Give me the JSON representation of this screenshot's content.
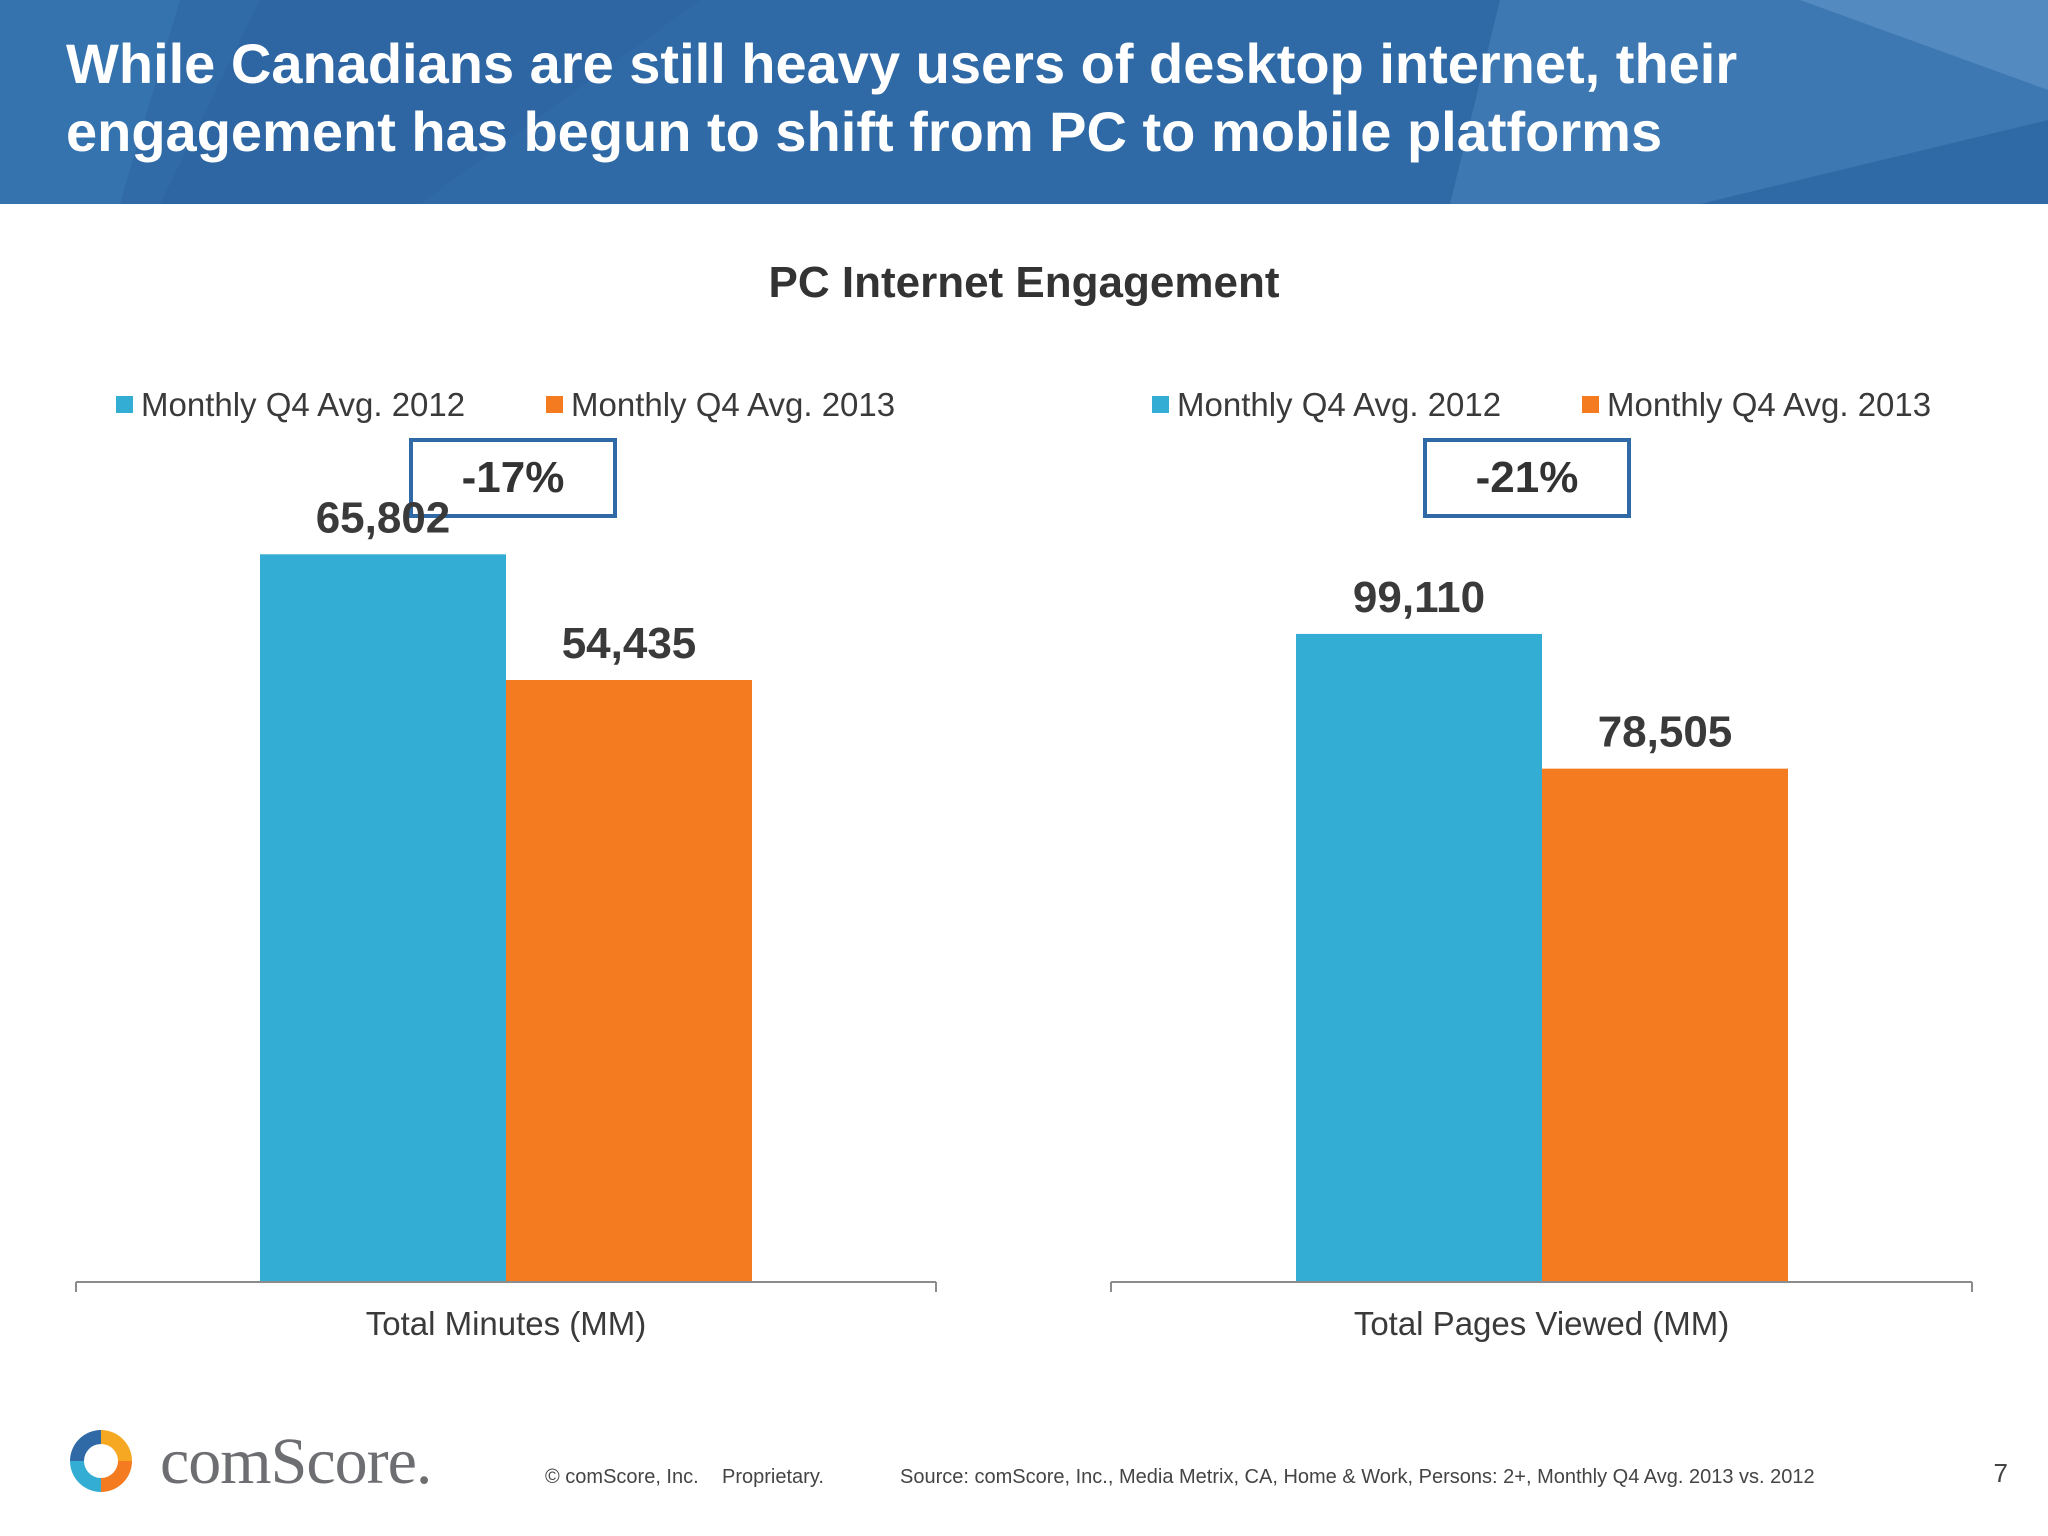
{
  "slide": {
    "title": "While Canadians are still heavy users of desktop internet, their engagement has begun to shift from PC to mobile platforms",
    "subtitle": "PC Internet Engagement",
    "page_number": "7"
  },
  "footer": {
    "logo_text": "comScore.",
    "copyright": "© comScore, Inc.",
    "proprietary": "Proprietary.",
    "source": "Source: comScore, Inc., Media Metrix, CA, Home & Work, Persons: 2+, Monthly Q4 Avg. 2013 vs. 2012"
  },
  "colors": {
    "banner": "#2f6aa6",
    "series_2012": "#33add4",
    "series_2013": "#f47b20",
    "callout_border": "#2f6aa6"
  },
  "chart_data": [
    {
      "type": "bar",
      "categories": [
        "Total Minutes (MM)"
      ],
      "series": [
        {
          "name": "Monthly Q4 Avg. 2012",
          "values": [
            65802
          ],
          "labels": [
            "65,802"
          ],
          "color": "#33add4"
        },
        {
          "name": "Monthly Q4 Avg. 2013",
          "values": [
            54435
          ],
          "labels": [
            "54,435"
          ],
          "color": "#f47b20"
        }
      ],
      "change_label": "-17%",
      "legend": "top",
      "ylim": [
        0,
        68000
      ]
    },
    {
      "type": "bar",
      "categories": [
        "Total Pages Viewed (MM)"
      ],
      "series": [
        {
          "name": "Monthly Q4 Avg. 2012",
          "values": [
            99110
          ],
          "labels": [
            "99,110"
          ],
          "color": "#33add4"
        },
        {
          "name": "Monthly Q4 Avg. 2013",
          "values": [
            78505
          ],
          "labels": [
            "78,505"
          ],
          "color": "#f47b20"
        }
      ],
      "change_label": "-21%",
      "legend": "top",
      "ylim": [
        0,
        115000
      ]
    }
  ]
}
